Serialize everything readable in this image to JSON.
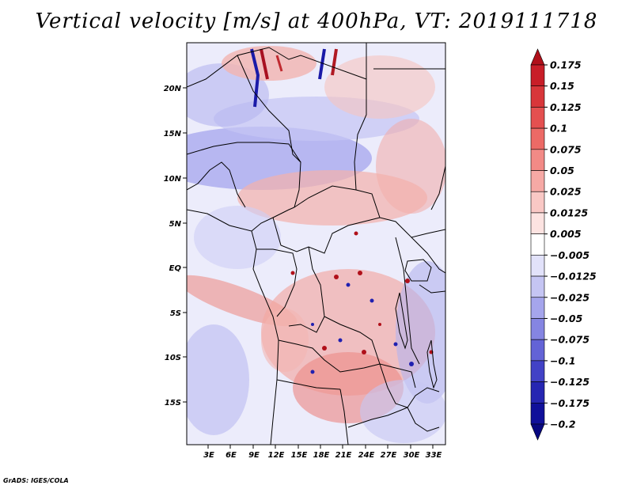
{
  "title": "Vertical velocity [m/s] at 400hPa, VT: 2019111718",
  "credit": "GrADS: IGES/COLA",
  "map": {
    "lon_ticks": [
      "3E",
      "6E",
      "9E",
      "12E",
      "15E",
      "18E",
      "21E",
      "24E",
      "27E",
      "30E",
      "33E"
    ],
    "lat_ticks": [
      "20N",
      "15N",
      "10N",
      "5N",
      "EQ",
      "5S",
      "10S",
      "15S"
    ]
  },
  "colorbar": {
    "labels": [
      "0.175",
      "0.15",
      "0.125",
      "0.1",
      "0.075",
      "0.05",
      "0.025",
      "0.0125",
      "0.005",
      "−0.005",
      "−0.0125",
      "−0.025",
      "−0.05",
      "−0.075",
      "−0.1",
      "−0.125",
      "−0.175",
      "−0.2"
    ],
    "colors": [
      "#b0101a",
      "#c81e28",
      "#d8363a",
      "#e45050",
      "#ec6a66",
      "#f28a86",
      "#f6a9a5",
      "#f9c8c5",
      "#fce3e1",
      "#ffffff",
      "#e2e2fa",
      "#c5c5f3",
      "#a5a5ec",
      "#8585e2",
      "#6363d6",
      "#4242c6",
      "#2626b2",
      "#10109a",
      "#080880"
    ]
  }
}
